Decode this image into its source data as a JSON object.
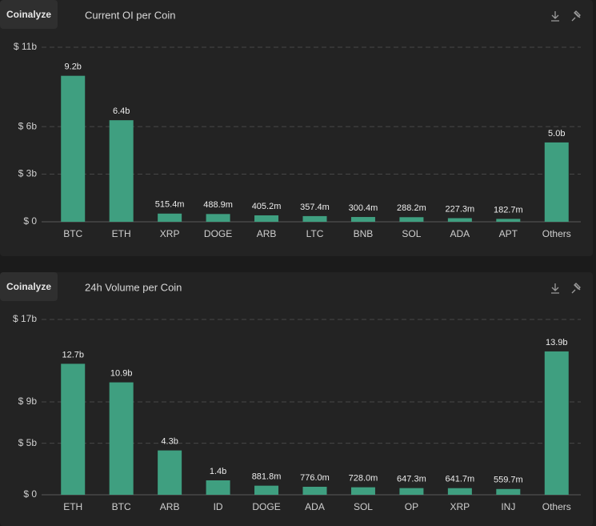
{
  "brand": "Coinalyze",
  "chart_data": [
    {
      "type": "bar",
      "title": "Current OI per Coin",
      "categories": [
        "BTC",
        "ETH",
        "XRP",
        "DOGE",
        "ARB",
        "LTC",
        "BNB",
        "SOL",
        "ADA",
        "APT",
        "Others"
      ],
      "values": [
        9.2,
        6.4,
        0.5154,
        0.4889,
        0.4052,
        0.3574,
        0.3004,
        0.2882,
        0.2273,
        0.1827,
        5.0
      ],
      "value_labels": [
        "9.2b",
        "6.4b",
        "515.4m",
        "488.9m",
        "405.2m",
        "357.4m",
        "300.4m",
        "288.2m",
        "227.3m",
        "182.7m",
        "5.0b"
      ],
      "color": "#3f9f80",
      "ylim": [
        0,
        11
      ],
      "yticks": [
        {
          "value": 0,
          "label": "$ 0"
        },
        {
          "value": 3,
          "label": "$ 3b"
        },
        {
          "value": 6,
          "label": "$ 6b"
        },
        {
          "value": 11,
          "label": "$ 11b"
        }
      ],
      "grid": true
    },
    {
      "type": "bar",
      "title": "24h Volume per Coin",
      "categories": [
        "ETH",
        "BTC",
        "ARB",
        "ID",
        "DOGE",
        "ADA",
        "SOL",
        "OP",
        "XRP",
        "INJ",
        "Others"
      ],
      "values": [
        12.7,
        10.9,
        4.3,
        1.4,
        0.8818,
        0.776,
        0.728,
        0.6473,
        0.6417,
        0.5597,
        13.9
      ],
      "value_labels": [
        "12.7b",
        "10.9b",
        "4.3b",
        "1.4b",
        "881.8m",
        "776.0m",
        "728.0m",
        "647.3m",
        "641.7m",
        "559.7m",
        "13.9b"
      ],
      "color": "#3f9f80",
      "ylim": [
        0,
        17
      ],
      "yticks": [
        {
          "value": 0,
          "label": "$ 0"
        },
        {
          "value": 5,
          "label": "$ 5b"
        },
        {
          "value": 9,
          "label": "$ 9b"
        },
        {
          "value": 17,
          "label": "$ 17b"
        }
      ],
      "grid": true
    }
  ]
}
